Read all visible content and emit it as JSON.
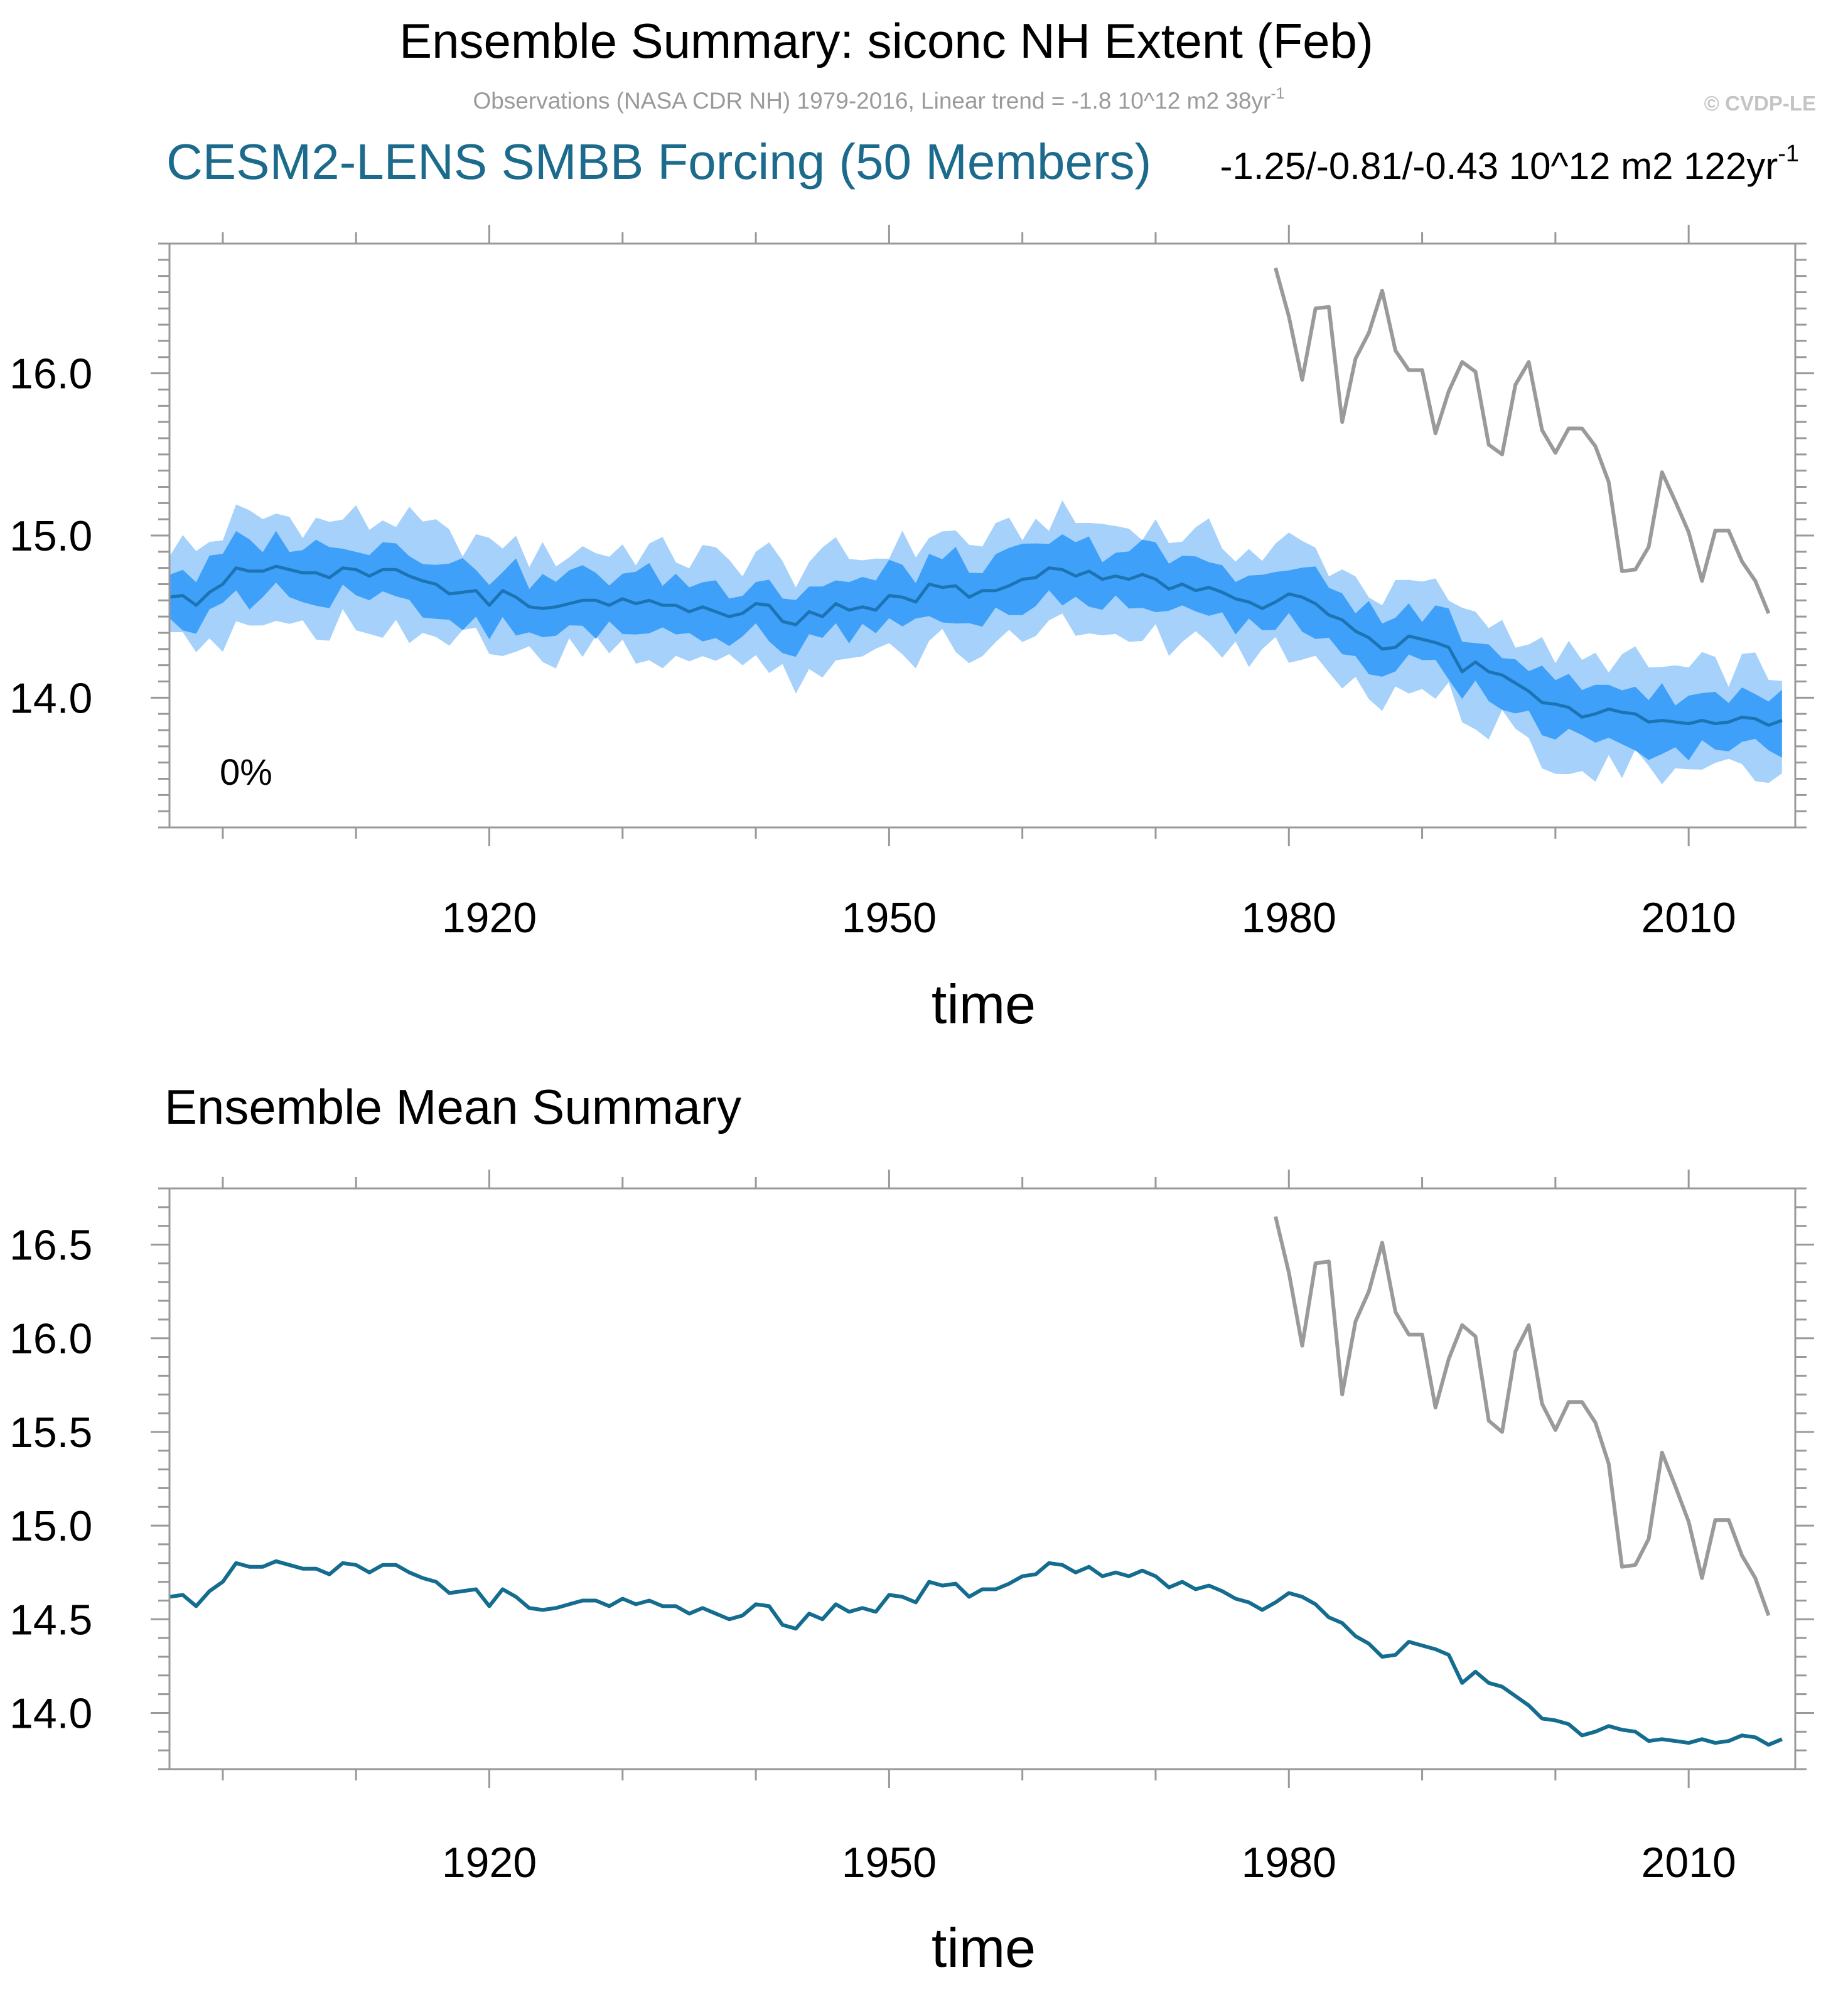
{
  "header": {
    "title": "Ensemble Summary: siconc NH Extent (Feb)",
    "obs_note": "Observations (NASA CDR NH) 1979-2016, Linear trend = -1.8 10^12 m2 38yr",
    "obs_note_sup": "-1",
    "copyright": "© CVDP-LE"
  },
  "chart_data": [
    {
      "type": "area",
      "title": "CESM2-LENS SMBB Forcing (50 Members)",
      "subtitle": "-1.25/-0.81/-0.43 10^12 m2 122yr",
      "subtitle_sup": "-1",
      "annotation": "0%",
      "xlabel": "time",
      "ylabel": "",
      "xlim": [
        1896,
        2018
      ],
      "ylim": [
        13.2,
        16.8
      ],
      "xticks": [
        1920,
        1950,
        1980,
        2010
      ],
      "yticks": [
        14.0,
        15.0,
        16.0
      ],
      "ytick_labels": [
        "14.0",
        "15.0",
        "16.0"
      ],
      "grid": false,
      "colors": {
        "outer_band": "#a5d1fa",
        "inner_band": "#3ea0f8",
        "ensemble_mean": "#1c74b5",
        "observations": "#9a9a9a"
      },
      "bands": [
        {
          "name": "outer",
          "lower_offset": -0.32,
          "upper_offset": 0.32
        },
        {
          "name": "inner",
          "lower_offset": -0.17,
          "upper_offset": 0.17
        }
      ],
      "ensemble_mean": {
        "x_start": 1896,
        "values": [
          14.62,
          14.63,
          14.57,
          14.65,
          14.7,
          14.8,
          14.78,
          14.78,
          14.81,
          14.79,
          14.77,
          14.77,
          14.74,
          14.8,
          14.79,
          14.75,
          14.79,
          14.79,
          14.75,
          14.72,
          14.7,
          14.64,
          14.65,
          14.66,
          14.57,
          14.66,
          14.62,
          14.56,
          14.55,
          14.56,
          14.58,
          14.6,
          14.6,
          14.57,
          14.61,
          14.58,
          14.6,
          14.57,
          14.57,
          14.53,
          14.56,
          14.53,
          14.5,
          14.52,
          14.58,
          14.57,
          14.47,
          14.45,
          14.53,
          14.5,
          14.58,
          14.54,
          14.56,
          14.54,
          14.63,
          14.62,
          14.59,
          14.7,
          14.68,
          14.69,
          14.62,
          14.66,
          14.66,
          14.69,
          14.73,
          14.74,
          14.8,
          14.79,
          14.75,
          14.78,
          14.73,
          14.75,
          14.73,
          14.76,
          14.73,
          14.67,
          14.7,
          14.66,
          14.68,
          14.65,
          14.61,
          14.59,
          14.55,
          14.59,
          14.64,
          14.62,
          14.58,
          14.51,
          14.48,
          14.41,
          14.37,
          14.3,
          14.31,
          14.38,
          14.36,
          14.34,
          14.31,
          14.16,
          14.22,
          14.16,
          14.14,
          14.09,
          14.04,
          13.97,
          13.96,
          13.94,
          13.88,
          13.9,
          13.93,
          13.91,
          13.9,
          13.85,
          13.86,
          13.85,
          13.84,
          13.86,
          13.84,
          13.85,
          13.88,
          13.87,
          13.83,
          13.86
        ]
      },
      "observations": {
        "x_start": 1979,
        "values": [
          16.65,
          16.35,
          15.96,
          16.4,
          16.41,
          15.7,
          16.09,
          16.25,
          16.51,
          16.14,
          16.02,
          16.02,
          15.63,
          15.89,
          16.07,
          16.01,
          15.56,
          15.5,
          15.93,
          16.07,
          15.65,
          15.51,
          15.66,
          15.66,
          15.55,
          15.33,
          14.78,
          14.79,
          14.93,
          15.39,
          15.21,
          15.02,
          14.72,
          15.03,
          15.03,
          14.84,
          14.72,
          14.52
        ]
      }
    },
    {
      "type": "line",
      "title": "Ensemble Mean Summary",
      "xlabel": "time",
      "ylabel": "",
      "xlim": [
        1896,
        2018
      ],
      "ylim": [
        13.7,
        16.8
      ],
      "xticks": [
        1920,
        1950,
        1980,
        2010
      ],
      "yticks": [
        14.0,
        14.5,
        15.0,
        15.5,
        16.0,
        16.5
      ],
      "ytick_labels": [
        "14.0",
        "14.5",
        "15.0",
        "15.5",
        "16.0",
        "16.5"
      ],
      "grid": false,
      "colors": {
        "ensemble_mean": "#146c8f",
        "observations": "#9a9a9a"
      },
      "ensemble_mean": {
        "x_start": 1896,
        "values": [
          14.62,
          14.63,
          14.57,
          14.65,
          14.7,
          14.8,
          14.78,
          14.78,
          14.81,
          14.79,
          14.77,
          14.77,
          14.74,
          14.8,
          14.79,
          14.75,
          14.79,
          14.79,
          14.75,
          14.72,
          14.7,
          14.64,
          14.65,
          14.66,
          14.57,
          14.66,
          14.62,
          14.56,
          14.55,
          14.56,
          14.58,
          14.6,
          14.6,
          14.57,
          14.61,
          14.58,
          14.6,
          14.57,
          14.57,
          14.53,
          14.56,
          14.53,
          14.5,
          14.52,
          14.58,
          14.57,
          14.47,
          14.45,
          14.53,
          14.5,
          14.58,
          14.54,
          14.56,
          14.54,
          14.63,
          14.62,
          14.59,
          14.7,
          14.68,
          14.69,
          14.62,
          14.66,
          14.66,
          14.69,
          14.73,
          14.74,
          14.8,
          14.79,
          14.75,
          14.78,
          14.73,
          14.75,
          14.73,
          14.76,
          14.73,
          14.67,
          14.7,
          14.66,
          14.68,
          14.65,
          14.61,
          14.59,
          14.55,
          14.59,
          14.64,
          14.62,
          14.58,
          14.51,
          14.48,
          14.41,
          14.37,
          14.3,
          14.31,
          14.38,
          14.36,
          14.34,
          14.31,
          14.16,
          14.22,
          14.16,
          14.14,
          14.09,
          14.04,
          13.97,
          13.96,
          13.94,
          13.88,
          13.9,
          13.93,
          13.91,
          13.9,
          13.85,
          13.86,
          13.85,
          13.84,
          13.86,
          13.84,
          13.85,
          13.88,
          13.87,
          13.83,
          13.86
        ]
      },
      "observations": {
        "x_start": 1979,
        "values": [
          16.65,
          16.35,
          15.96,
          16.4,
          16.41,
          15.7,
          16.09,
          16.25,
          16.51,
          16.14,
          16.02,
          16.02,
          15.63,
          15.89,
          16.07,
          16.01,
          15.56,
          15.5,
          15.93,
          16.07,
          15.65,
          15.51,
          15.66,
          15.66,
          15.55,
          15.33,
          14.78,
          14.79,
          14.93,
          15.39,
          15.21,
          15.02,
          14.72,
          15.03,
          15.03,
          14.84,
          14.72,
          14.52
        ]
      }
    }
  ]
}
